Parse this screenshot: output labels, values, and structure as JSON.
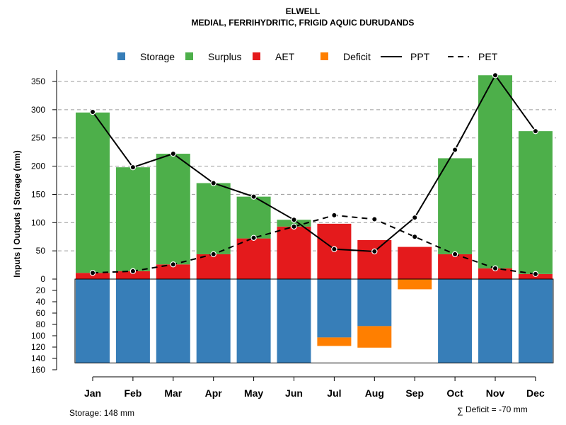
{
  "chart_data": {
    "type": "bar",
    "title": "ELWELL",
    "subtitle": "MEDIAL, FERRIHYDRITIC, FRIGID AQUIC DURUDANDS",
    "ylabel": "Inputs | Outputs | Storage    (mm)",
    "categories": [
      "Jan",
      "Feb",
      "Mar",
      "Apr",
      "May",
      "Jun",
      "Jul",
      "Aug",
      "Sep",
      "Oct",
      "Nov",
      "Dec"
    ],
    "upper_axis": {
      "ylim": [
        0,
        370
      ],
      "ticks": [
        0,
        50,
        100,
        150,
        200,
        250,
        300,
        350
      ]
    },
    "lower_axis": {
      "ylim": [
        0,
        160
      ],
      "ticks": [
        0,
        20,
        40,
        60,
        80,
        100,
        120,
        140,
        160
      ]
    },
    "series": [
      {
        "name": "Storage",
        "color": "#377EB8",
        "kind": "bar-down",
        "values": [
          148,
          148,
          148,
          148,
          148,
          148,
          103,
          83,
          0,
          148,
          148,
          148
        ]
      },
      {
        "name": "Surplus",
        "color": "#4DAF4A",
        "kind": "bar-stack",
        "values": [
          284,
          184,
          196,
          126,
          74,
          12,
          0,
          0,
          0,
          170,
          342,
          253
        ]
      },
      {
        "name": "AET",
        "color": "#E41A1C",
        "kind": "bar-stack",
        "values": [
          11,
          14,
          26,
          44,
          72,
          93,
          98,
          69,
          57,
          44,
          19,
          9
        ]
      },
      {
        "name": "Deficit",
        "color": "#FF7F00",
        "kind": "bar-down",
        "values": [
          0,
          0,
          0,
          0,
          0,
          0,
          15,
          38,
          18,
          0,
          0,
          0
        ]
      },
      {
        "name": "PPT",
        "color": "#000000",
        "kind": "line-solid",
        "values": [
          296,
          198,
          222,
          170,
          146,
          105,
          53,
          49,
          109,
          229,
          361,
          262
        ]
      },
      {
        "name": "PET",
        "color": "#000000",
        "kind": "line-dashed",
        "values": [
          11,
          14,
          26,
          44,
          73,
          93,
          113,
          106,
          75,
          44,
          19,
          9
        ]
      }
    ],
    "storage_capacity_mm": 148,
    "footer_left": "Storage: 148 mm",
    "footer_right": "Deficit = -70 mm",
    "footer_symbol": "∑"
  }
}
